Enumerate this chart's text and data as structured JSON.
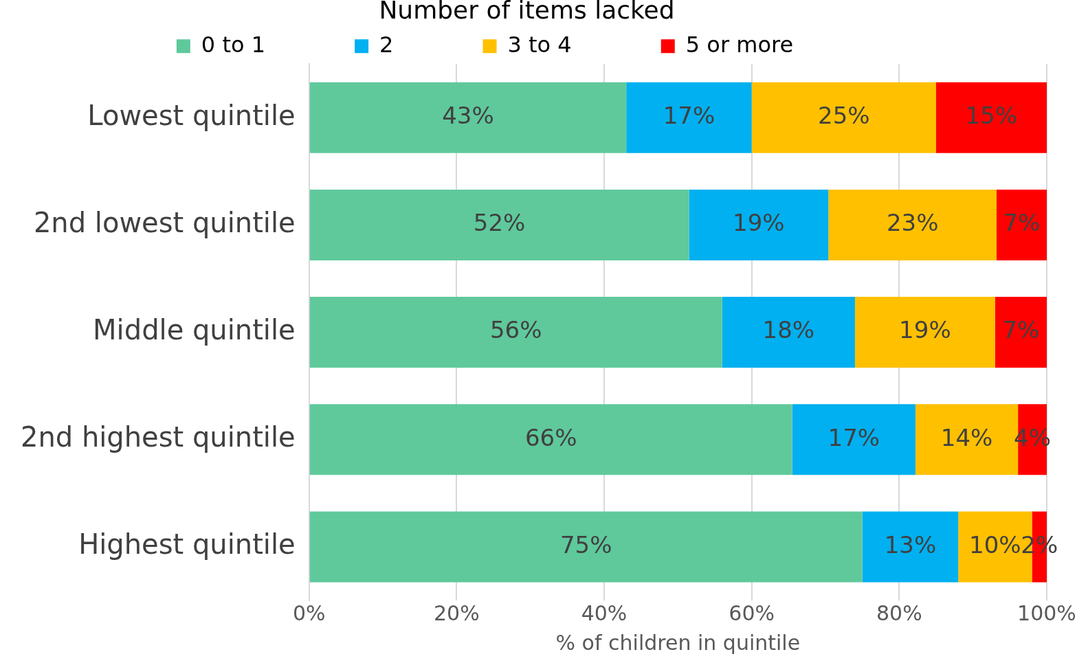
{
  "chart_data": {
    "type": "bar",
    "orientation": "horizontal",
    "stacked": true,
    "legend_title": "Number of items lacked",
    "legend": "top",
    "xlabel": "% of children in quintile",
    "categories": [
      "Lowest quintile",
      "2nd lowest quintile",
      "Middle quintile",
      "2nd highest quintile",
      "Highest quintile"
    ],
    "series": [
      {
        "name": "0 to 1",
        "color": "#5fc99c",
        "values": [
          43,
          51.5,
          56,
          65.5,
          75
        ],
        "value_labels": [
          "43%",
          "52%",
          "56%",
          "66%",
          "75%"
        ]
      },
      {
        "name": "2",
        "color": "#00b0f0",
        "values": [
          17,
          18.9,
          18,
          16.7,
          13
        ],
        "value_labels": [
          "17%",
          "19%",
          "18%",
          "17%",
          "13%"
        ]
      },
      {
        "name": "3 to 4",
        "color": "#ffc000",
        "values": [
          25,
          22.8,
          19,
          13.9,
          10
        ],
        "value_labels": [
          "25%",
          "23%",
          "19%",
          "14%",
          "10%"
        ]
      },
      {
        "name": "5 or more",
        "color": "#ff0000",
        "values": [
          15,
          6.8,
          7,
          3.9,
          2
        ],
        "value_labels": [
          "15%",
          "7%",
          "7%",
          "4%",
          "2%"
        ]
      }
    ],
    "xlim": [
      0,
      100
    ],
    "xticks": [
      {
        "value": 0,
        "label": "0%"
      },
      {
        "value": 20,
        "label": "20%"
      },
      {
        "value": 40,
        "label": "40%"
      },
      {
        "value": 60,
        "label": "60%"
      },
      {
        "value": 80,
        "label": "80%"
      },
      {
        "value": 100,
        "label": "100%"
      }
    ],
    "grid": "x"
  }
}
